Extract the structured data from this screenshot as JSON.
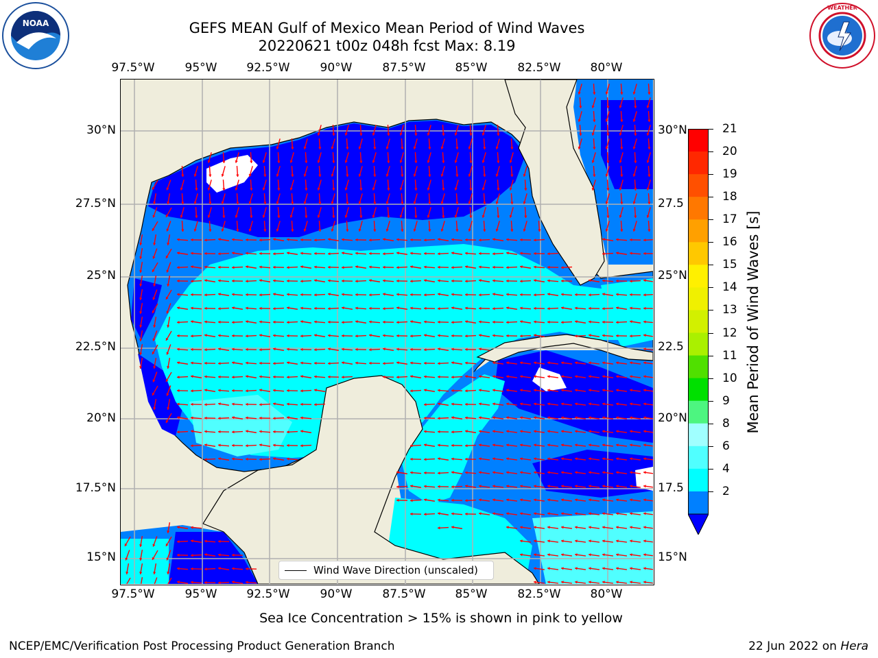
{
  "title": {
    "line1": "GEFS MEAN Gulf of Mexico Mean Period of Wind Waves",
    "line2": "20220621 t00z 048h fcst   Max: 8.19"
  },
  "logos": {
    "left": {
      "name": "NOAA",
      "ring_text": "NATIONAL OCEANIC AND ATMOSPHERIC ADMINISTRATION · U.S. DEPARTMENT OF COMMERCE"
    },
    "right": {
      "ring_text": "NATIONAL WEATHER SERVICE"
    }
  },
  "axes": {
    "lon_ticks": [
      "97.5°W",
      "95°W",
      "92.5°W",
      "90°W",
      "87.5°W",
      "85°W",
      "82.5°W",
      "80°W"
    ],
    "lat_ticks_left": [
      "30°N",
      "27.5°N",
      "25°N",
      "22.5°N",
      "20°N",
      "17.5°N",
      "15°N"
    ],
    "lat_ticks_right": [
      "30°N",
      "27.5",
      "25°N",
      "22.5",
      "20°N",
      "17.5",
      "15°N"
    ]
  },
  "legend": {
    "label": "Wind Wave Direction (unscaled)"
  },
  "colorbar": {
    "label": "Mean Period of Wind Waves [s]",
    "ticks": [
      "21",
      "20",
      "19",
      "18",
      "17",
      "16",
      "15",
      "14",
      "13",
      "12",
      "11",
      "10",
      "9",
      "8",
      "6",
      "4",
      "2"
    ],
    "colors": [
      "#ff0000",
      "#ff2800",
      "#ff5000",
      "#ff7800",
      "#ffa000",
      "#ffc800",
      "#fff000",
      "#f0f000",
      "#d2f000",
      "#aaf000",
      "#50e000",
      "#00e000",
      "#4df580",
      "#a0ffff",
      "#50ffff",
      "#00ffff",
      "#0080ff",
      "#0000ff"
    ]
  },
  "map_colors": {
    "land": "#efeddc",
    "ocean_deep": "#0000ff",
    "ocean_mid": "#0080ff",
    "ocean_light": "#00ffff",
    "ocean_pale": "#50ffff",
    "arrows": "#ff0000"
  },
  "chart_data": {
    "type": "heatmap",
    "lon_range": [
      -98.5,
      -78.8
    ],
    "lat_range": [
      14.0,
      31.8
    ],
    "max_value": 8.19,
    "units": "s"
  },
  "footer": {
    "note": "Sea Ice Concentration > 15% is shown in pink to yellow",
    "credit": "NCEP/EMC/Verification Post Processing Product Generation Branch",
    "date": "22 Jun 2022 on",
    "machine": "Hera"
  }
}
